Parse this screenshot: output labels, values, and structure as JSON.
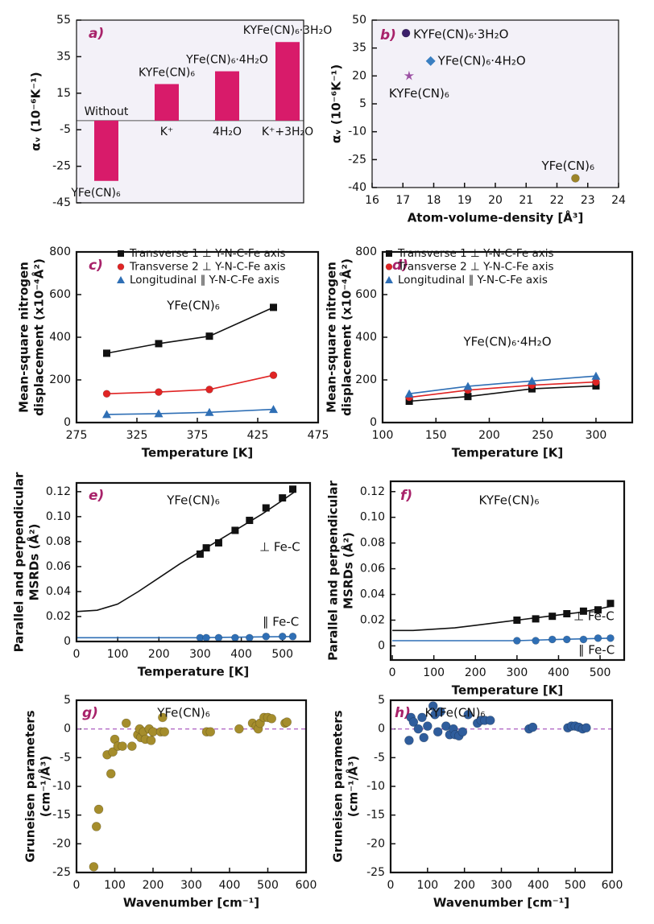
{
  "chart_data": [
    {
      "type": "bar",
      "label": "a)",
      "ylabel": [
        "αᵥ (10⁻⁶K⁻¹)"
      ],
      "background": "#f3f1f8",
      "color": "#d81b6a",
      "categories": [
        "Without",
        "K⁺",
        "4H₂O",
        "K⁺+3H₂O"
      ],
      "compounds": [
        "YFe(CN)₆",
        "KYFe(CN)₆",
        "YFe(CN)₆·4H₂O",
        "KYFe(CN)₆·3H₂O"
      ],
      "values": [
        -33,
        20,
        27,
        43
      ],
      "ylim": [
        -45,
        55
      ],
      "yticks": [
        -45,
        -25,
        -5,
        15,
        35,
        55
      ]
    },
    {
      "type": "scatter",
      "label": "b)",
      "ylabel": [
        "αᵥ (10⁻⁶K⁻¹)"
      ],
      "xlabel": "Atom-volume-density [Å³]",
      "background": "#f3f1f8",
      "series": [
        {
          "name": "KYFe(CN)₆·3H₂O",
          "color": "#3b1f6b",
          "marker": "circle",
          "x": [
            17.1
          ],
          "values": [
            43
          ]
        },
        {
          "name": "YFe(CN)₆·4H₂O",
          "color": "#3a7fc1",
          "marker": "diamond",
          "x": [
            17.9
          ],
          "values": [
            28
          ]
        },
        {
          "name": "KYFe(CN)₆",
          "color": "#9b4fa3",
          "marker": "star",
          "x": [
            17.2
          ],
          "values": [
            20
          ]
        },
        {
          "name": "YFe(CN)₆",
          "color": "#9c8428",
          "marker": "circle",
          "x": [
            22.6
          ],
          "values": [
            -35
          ]
        }
      ],
      "xlim": [
        16,
        24
      ],
      "xticks": [
        16,
        17,
        18,
        19,
        20,
        21,
        22,
        23,
        24
      ],
      "ylim": [
        -40,
        50
      ],
      "yticks": [
        -40,
        -25,
        -10,
        5,
        20,
        35,
        50
      ]
    },
    {
      "type": "line",
      "label": "c)",
      "ylabel": [
        "Mean-square nitrogen",
        "displacement (x10⁻⁴Å²)"
      ],
      "xlabel": "Temperature [K]",
      "legend": "top",
      "annotations": [
        "YFe(CN)₆"
      ],
      "series": [
        {
          "name": "Transverse 1 ⊥ Y-N-C-Fe axis",
          "color": "#111111",
          "marker": "square",
          "line": true,
          "x": [
            300,
            343,
            385,
            438
          ],
          "values": [
            325,
            370,
            405,
            540
          ]
        },
        {
          "name": "Transverse 2 ⊥ Y-N-C-Fe axis",
          "color": "#e02424",
          "marker": "circle",
          "line": true,
          "x": [
            300,
            343,
            385,
            438
          ],
          "values": [
            135,
            143,
            155,
            222
          ]
        },
        {
          "name": "Longitudinal ∥ Y-N-C-Fe axis",
          "color": "#2f6fb5",
          "marker": "triangle",
          "line": true,
          "x": [
            300,
            343,
            385,
            438
          ],
          "values": [
            38,
            42,
            48,
            62
          ]
        }
      ],
      "xlim": [
        275,
        475
      ],
      "xticks": [
        275,
        325,
        375,
        425,
        475
      ],
      "ylim": [
        0,
        800
      ],
      "yticks": [
        0,
        200,
        400,
        600,
        800
      ]
    },
    {
      "type": "line",
      "label": "d)",
      "ylabel": [
        "Mean-square nitrogen",
        "displacement (x10⁻⁴Å²)"
      ],
      "xlabel": "Temperature [K]",
      "legend": "top",
      "annotations": [
        "YFe(CN)₆·4H₂O"
      ],
      "series": [
        {
          "name": "Transverse 1 ⊥ Y-N-C-Fe axis",
          "color": "#111111",
          "marker": "square",
          "line": true,
          "x": [
            125,
            180,
            240,
            300
          ],
          "values": [
            100,
            122,
            158,
            172
          ]
        },
        {
          "name": "Transverse 2 ⊥ Y-N-C-Fe axis",
          "color": "#e02424",
          "marker": "circle",
          "line": true,
          "x": [
            125,
            180,
            240,
            300
          ],
          "values": [
            118,
            152,
            175,
            190
          ]
        },
        {
          "name": "Longitudinal ∥ Y-N-C-Fe axis",
          "color": "#2f6fb5",
          "marker": "triangle",
          "line": true,
          "x": [
            125,
            180,
            240,
            300
          ],
          "values": [
            135,
            170,
            195,
            218
          ]
        }
      ],
      "xlim": [
        100,
        334
      ],
      "xticks": [
        100,
        150,
        200,
        250,
        300
      ],
      "ylim": [
        0,
        800
      ],
      "yticks": [
        0,
        200,
        400,
        600,
        800
      ]
    },
    {
      "type": "line",
      "label": "e)",
      "ylabel": [
        "Parallel and perpendicular",
        "MSRDs (Å²)"
      ],
      "xlabel": "Temperature [K]",
      "annotations": [
        "YFe(CN)₆",
        "⊥ Fe-C",
        "∥ Fe-C"
      ],
      "series": [
        {
          "color": "#111111",
          "line": true,
          "x": [
            0,
            50,
            100,
            150,
            200,
            250,
            300,
            350,
            400,
            450,
            500,
            530
          ],
          "values": [
            0.024,
            0.025,
            0.03,
            0.04,
            0.051,
            0.062,
            0.072,
            0.082,
            0.092,
            0.102,
            0.113,
            0.12
          ]
        },
        {
          "color": "#2f6fb5",
          "line": true,
          "x": [
            0,
            100,
            200,
            300,
            400,
            530
          ],
          "values": [
            0.003,
            0.003,
            0.003,
            0.003,
            0.0035,
            0.004
          ]
        },
        {
          "color": "#111111",
          "marker": "square",
          "x": [
            300,
            315,
            345,
            385,
            420,
            460,
            500,
            525
          ],
          "values": [
            0.07,
            0.075,
            0.079,
            0.089,
            0.097,
            0.107,
            0.115,
            0.122
          ]
        },
        {
          "color": "#2f6fb5",
          "marker": "circle",
          "x": [
            300,
            315,
            345,
            385,
            420,
            460,
            500,
            525
          ],
          "values": [
            0.003,
            0.003,
            0.003,
            0.003,
            0.003,
            0.004,
            0.004,
            0.004
          ]
        }
      ],
      "xlim": [
        0,
        567
      ],
      "xticks": [
        0,
        100,
        200,
        300,
        400,
        500
      ],
      "ylim": [
        0,
        0.127
      ],
      "yticks": [
        0,
        0.02,
        0.04,
        0.06,
        0.08,
        {
          "value": 0.1,
          "label": "0.10"
        },
        0.12
      ]
    },
    {
      "type": "line",
      "label": "f)",
      "ylabel": [
        "Parallel and perpendicular",
        "MSRDs (Å²)"
      ],
      "xlabel": "Temperature [K]",
      "annotations": [
        "KYFe(CN)₆",
        "⊥ Fe-C",
        "∥ Fe-C"
      ],
      "series": [
        {
          "color": "#111111",
          "line": true,
          "x": [
            0,
            50,
            100,
            150,
            200,
            250,
            300,
            350,
            400,
            450,
            500,
            530
          ],
          "values": [
            0.012,
            0.012,
            0.013,
            0.014,
            0.016,
            0.018,
            0.02,
            0.022,
            0.024,
            0.026,
            0.029,
            0.031
          ]
        },
        {
          "color": "#2f6fb5",
          "line": true,
          "x": [
            0,
            100,
            200,
            300,
            400,
            530
          ],
          "values": [
            0.004,
            0.004,
            0.004,
            0.004,
            0.005,
            0.006
          ]
        },
        {
          "color": "#111111",
          "marker": "square",
          "x": [
            300,
            345,
            385,
            420,
            460,
            495,
            525
          ],
          "values": [
            0.02,
            0.021,
            0.023,
            0.025,
            0.027,
            0.028,
            0.033
          ]
        },
        {
          "color": "#2f6fb5",
          "marker": "circle",
          "x": [
            300,
            345,
            385,
            420,
            460,
            495,
            525
          ],
          "values": [
            0.004,
            0.004,
            0.005,
            0.005,
            0.005,
            0.006,
            0.006
          ]
        }
      ],
      "xlim": [
        -4,
        558
      ],
      "xticks": [
        0,
        100,
        200,
        300,
        400,
        500
      ],
      "ylim": [
        -0.011,
        0.128
      ],
      "yticks": [
        0,
        0.02,
        0.04,
        0.06,
        0.08,
        {
          "value": 0.1,
          "label": "0.10"
        },
        0.12
      ]
    },
    {
      "type": "scatter",
      "label": "g)",
      "ylabel": [
        "Gruneisen parameters",
        "(cm⁻¹/Å³)"
      ],
      "xlabel": "Wavenumber [cm⁻¹]",
      "annotations": [
        "YFe(CN)₆"
      ],
      "reference_line": 0,
      "reference_color": "#b36bc7",
      "series": [
        {
          "color": "#a58d2c",
          "marker": "circle",
          "x": [
            45,
            52,
            58,
            80,
            90,
            95,
            100,
            108,
            120,
            130,
            145,
            160,
            165,
            168,
            175,
            180,
            190,
            195,
            200,
            220,
            225,
            230,
            340,
            350,
            425,
            460,
            470,
            475,
            480,
            490,
            500,
            510,
            545,
            550
          ],
          "values": [
            -24,
            -17,
            -14,
            -4.5,
            -7.8,
            -4,
            -1.8,
            -3,
            -3,
            1,
            -3,
            -1,
            0,
            -1.5,
            -0.5,
            -1.8,
            0,
            -2,
            -0.5,
            -0.5,
            2,
            -0.5,
            -0.5,
            -0.5,
            0,
            1,
            0.5,
            0,
            1,
            2,
            2,
            1.8,
            1,
            1.2
          ]
        }
      ],
      "xlim": [
        0,
        600
      ],
      "xticks": [
        0,
        100,
        200,
        300,
        400,
        500,
        600
      ],
      "ylim": [
        -25,
        5
      ],
      "yticks": [
        -25,
        -20,
        -15,
        -10,
        -5,
        0,
        5
      ]
    },
    {
      "type": "scatter",
      "label": "h)",
      "ylabel": [
        "Gruneisen parameters",
        "(cm⁻¹/Å³)"
      ],
      "xlabel": "Wavenumber [cm⁻¹]",
      "annotations": [
        "KYFe(CN)₆"
      ],
      "reference_line": 0,
      "reference_color": "#b36bc7",
      "series": [
        {
          "color": "#2f5d9c",
          "marker": "circle",
          "x": [
            50,
            55,
            62,
            75,
            85,
            90,
            100,
            115,
            120,
            128,
            135,
            150,
            160,
            170,
            175,
            185,
            195,
            210,
            235,
            245,
            255,
            270,
            375,
            385,
            480,
            490,
            500,
            510,
            520,
            530
          ],
          "values": [
            -2,
            2,
            1.2,
            0,
            2,
            -1.5,
            0.5,
            4,
            2.5,
            -0.5,
            3,
            0.5,
            -1,
            0,
            -1,
            -1.2,
            -0.5,
            2.5,
            1,
            1.5,
            1.5,
            1.5,
            0,
            0.3,
            0.2,
            0.5,
            0.5,
            0.3,
            0,
            0.2
          ]
        }
      ],
      "xlim": [
        0,
        600
      ],
      "xticks": [
        0,
        100,
        200,
        300,
        400,
        500,
        600
      ],
      "ylim": [
        -25,
        5
      ],
      "yticks": [
        -25,
        -20,
        -15,
        -10,
        -5,
        0,
        5
      ]
    }
  ]
}
